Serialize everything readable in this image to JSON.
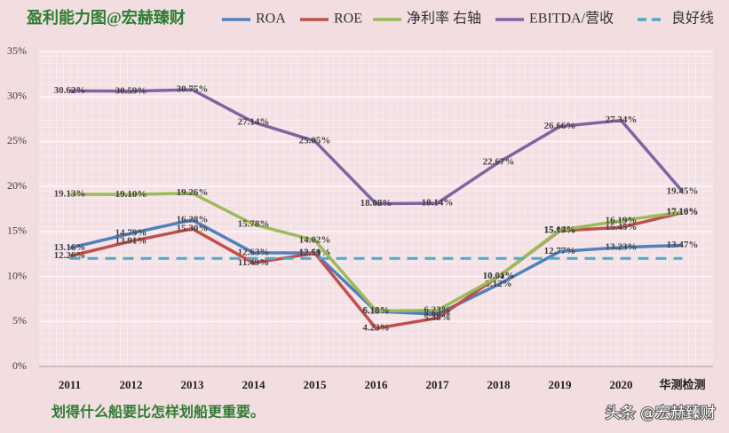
{
  "chart_data": {
    "type": "line",
    "title": "盈利能力图@宏赫臻财",
    "categories": [
      "2011",
      "2012",
      "2013",
      "2014",
      "2015",
      "2016",
      "2017",
      "2018",
      "2019",
      "2020",
      "华测检测"
    ],
    "series": [
      {
        "name": "ROA",
        "color": "#4f81bd",
        "values": [
          13.16,
          14.79,
          16.28,
          12.63,
          12.61,
          6.13,
          5.8,
          9.12,
          12.77,
          13.23,
          13.47
        ],
        "value_labels": [
          "13.16%",
          "14.79%",
          "16.28%",
          "12.63%",
          "12.61%",
          "6.13%",
          "5.80%",
          "9.12%",
          "12.77%",
          "13.23%",
          "13.47%"
        ]
      },
      {
        "name": "ROE",
        "color": "#c0504d",
        "values": [
          12.26,
          13.91,
          15.3,
          11.49,
          12.59,
          4.23,
          5.38,
          10.0,
          15.07,
          15.45,
          17.1
        ],
        "value_labels": [
          "12.26%",
          "13.91%",
          "15.30%",
          "11.49%",
          "12.59%",
          "4.23%",
          "5.38%",
          "10.00%",
          "15.07%",
          "15.45%",
          "17.10%"
        ]
      },
      {
        "name": "净利率 右轴",
        "color": "#9bbb59",
        "values": [
          19.13,
          19.1,
          19.26,
          15.78,
          14.02,
          6.18,
          6.23,
          10.01,
          15.14,
          16.19,
          17.16
        ],
        "value_labels": [
          "19.13%",
          "19.10%",
          "19.26%",
          "15.78%",
          "14.02%",
          "6.18%",
          "6.23%",
          "10.01%",
          "15.14%",
          "16.19%",
          "17.16%"
        ]
      },
      {
        "name": "EBITDA/营收",
        "color": "#8064a2",
        "values": [
          30.62,
          30.59,
          30.75,
          27.14,
          25.05,
          18.08,
          18.14,
          22.67,
          26.66,
          27.34,
          19.45
        ],
        "value_labels": [
          "30.62%",
          "30.59%",
          "30.75%",
          "27.14%",
          "25.05%",
          "18.08%",
          "18.14%",
          "22.67%",
          "26.66%",
          "27.34%",
          "19.45%"
        ]
      },
      {
        "name": "良好线",
        "color": "#4bacc6",
        "dashed": true,
        "values": [
          12,
          12,
          12,
          12,
          12,
          12,
          12,
          12,
          12,
          12,
          12
        ]
      }
    ],
    "ylim": [
      0,
      35
    ],
    "yticks": [
      {
        "value": 0,
        "label": "0%"
      },
      {
        "value": 5,
        "label": "5%"
      },
      {
        "value": 10,
        "label": "10%"
      },
      {
        "value": 15,
        "label": "15%"
      },
      {
        "value": 20,
        "label": "20%"
      },
      {
        "value": 25,
        "label": "25%"
      },
      {
        "value": 30,
        "label": "30%"
      },
      {
        "value": 35,
        "label": "35%"
      }
    ],
    "grid": true,
    "footer": "划得什么船要比怎样划船更重要。",
    "watermark": "头条 @宏赫臻财"
  }
}
